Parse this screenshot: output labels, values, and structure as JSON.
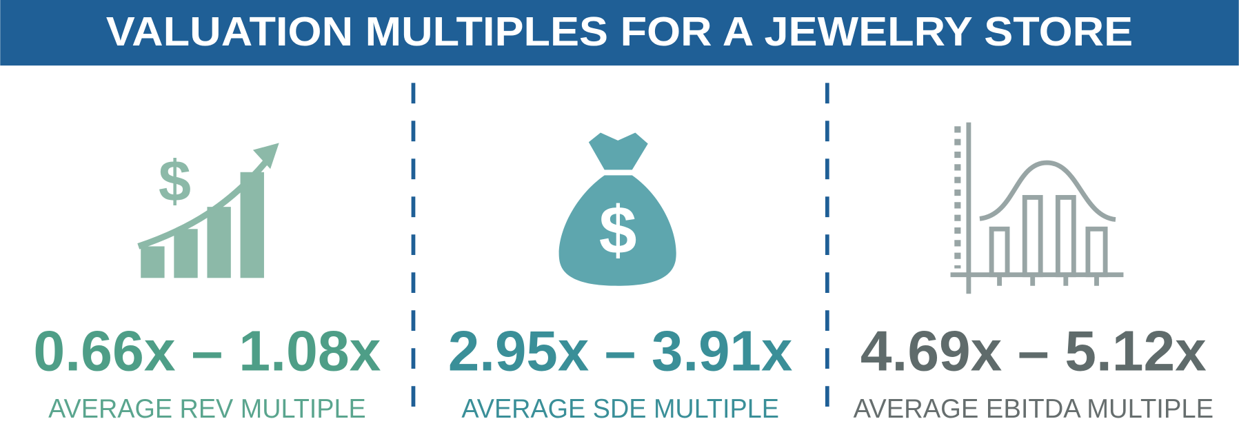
{
  "header": {
    "title": "VALUATION MULTIPLES FOR A JEWELRY STORE"
  },
  "panels": [
    {
      "range": "0.66x – 1.08x",
      "label": "AVERAGE REV MULTIPLE"
    },
    {
      "range": "2.95x – 3.91x",
      "label": "AVERAGE SDE MULTIPLE"
    },
    {
      "range": "4.69x – 5.12x",
      "label": "AVERAGE EBITDA MULTIPLE"
    }
  ]
}
